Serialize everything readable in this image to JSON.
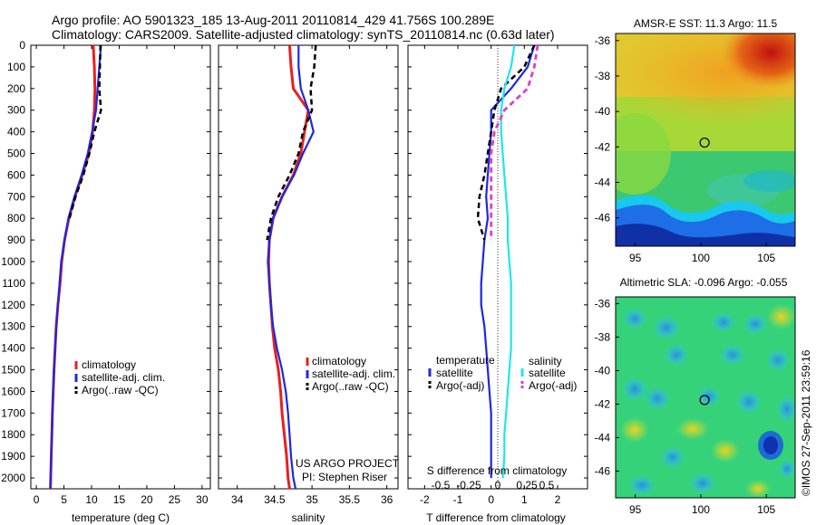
{
  "header": {
    "line1": "Argo profile: AO 5901323_185 13-Aug-2011 20110814_429 41.756S 100.289E",
    "line2": "Climatology: CARS2009. Satellite-adjusted climatology: synTS_20110814.nc (0.63d later)"
  },
  "colors": {
    "climatology": "#e8201e",
    "satellite": "#1c28e0",
    "argo": "#000000",
    "sal_sat": "#1ee6ee",
    "sal_argo": "#e53ad3"
  },
  "chart_data": [
    {
      "type": "line",
      "name": "temperature",
      "xlabel": "temperature (deg C)",
      "ylabel": "",
      "xlim": [
        -1,
        31.5
      ],
      "ylim": [
        2050,
        0
      ],
      "xticks": [
        0,
        5,
        10,
        15,
        20,
        25,
        30
      ],
      "yticks": [
        0,
        100,
        200,
        300,
        400,
        500,
        600,
        700,
        800,
        900,
        1000,
        1100,
        1200,
        1300,
        1400,
        1500,
        1600,
        1700,
        1800,
        1900,
        2000
      ],
      "legend": [
        "climatology",
        "satellite-adj. clim.",
        "Argo(..raw -QC)"
      ],
      "series": [
        {
          "name": "climatology",
          "x": [
            10.3,
            10.5,
            10.6,
            10.5,
            10.2,
            9.5,
            8.3,
            7.0,
            5.9,
            5.1,
            4.6,
            4.3,
            3.9,
            3.6,
            3.4,
            3.2,
            3.05,
            2.9,
            2.8,
            2.7,
            2.6,
            2.55
          ],
          "y": [
            0,
            100,
            200,
            300,
            400,
            500,
            600,
            700,
            800,
            900,
            1000,
            1100,
            1200,
            1300,
            1400,
            1500,
            1600,
            1700,
            1800,
            1900,
            2000,
            2050
          ]
        },
        {
          "name": "satellite-adj. clim.",
          "x": [
            11.7,
            11.4,
            11.1,
            10.8,
            10.1,
            9.3,
            8.2,
            6.9,
            5.8,
            5.1,
            4.5,
            4.2,
            3.9,
            3.6,
            3.4,
            3.2,
            3.05,
            2.9,
            2.8,
            2.7,
            2.6,
            2.55
          ],
          "y": [
            0,
            100,
            200,
            300,
            400,
            500,
            600,
            700,
            800,
            900,
            1000,
            1100,
            1200,
            1300,
            1400,
            1500,
            1600,
            1700,
            1800,
            1900,
            2000,
            2050
          ]
        },
        {
          "name": "Argo(..raw -QC)",
          "x": [
            11.6,
            11.5,
            11.4,
            11.7,
            10.5,
            9.6,
            8.5,
            7.1,
            6.0
          ],
          "y": [
            0,
            100,
            200,
            300,
            400,
            500,
            600,
            700,
            800
          ]
        }
      ]
    },
    {
      "type": "line",
      "name": "salinity",
      "xlabel": "salinity",
      "ylabel": "",
      "xlim": [
        33.75,
        36.15
      ],
      "ylim": [
        2050,
        0
      ],
      "xticks": [
        34,
        34.5,
        35,
        35.5,
        36
      ],
      "legend": [
        "climatology",
        "satellite-adj. clim.",
        "Argo(..raw -QC)"
      ],
      "series": [
        {
          "name": "climatology",
          "x": [
            34.7,
            34.72,
            34.75,
            34.95,
            34.9,
            34.85,
            34.75,
            34.6,
            34.48,
            34.43,
            34.42,
            34.43,
            34.45,
            34.47,
            34.5,
            34.55,
            34.58,
            34.6,
            34.63,
            34.66,
            34.68,
            34.7
          ],
          "y": [
            0,
            100,
            200,
            300,
            400,
            500,
            600,
            700,
            800,
            900,
            1000,
            1100,
            1200,
            1300,
            1400,
            1500,
            1600,
            1700,
            1800,
            1900,
            2000,
            2050
          ]
        },
        {
          "name": "satellite-adj. clim.",
          "x": [
            34.82,
            34.82,
            34.85,
            34.95,
            35.02,
            34.88,
            34.76,
            34.6,
            34.48,
            34.43,
            34.41,
            34.43,
            34.45,
            34.48,
            34.53,
            34.6,
            34.65,
            34.68,
            34.7,
            34.72,
            34.75,
            34.78
          ],
          "y": [
            0,
            100,
            200,
            300,
            400,
            500,
            600,
            700,
            800,
            900,
            1000,
            1100,
            1200,
            1300,
            1400,
            1500,
            1600,
            1700,
            1800,
            1900,
            2000,
            2050
          ]
        },
        {
          "name": "Argo(..raw -QC)",
          "x": [
            35.05,
            35.03,
            34.98,
            35.0,
            34.88,
            34.82,
            34.7,
            34.55,
            34.45,
            34.4
          ],
          "y": [
            0,
            100,
            200,
            300,
            400,
            500,
            600,
            700,
            800,
            900
          ]
        }
      ]
    },
    {
      "type": "line",
      "name": "difference",
      "xlabel": "T difference from climatology",
      "x2label": "S difference from climatology",
      "xlim": [
        -2.5,
        2.9
      ],
      "ylim": [
        2050,
        0
      ],
      "xticks": [
        -2,
        -1,
        0,
        1,
        2
      ],
      "x2ticks": [
        {
          "value": -0.5,
          "label": "-0.5"
        },
        {
          "value": -0.25,
          "label": "-0.25"
        },
        {
          "value": 0,
          "label": "0"
        },
        {
          "value": 0.25,
          "label": "0.25"
        },
        {
          "value": 0.5,
          "label": "0.5"
        }
      ],
      "legend_headers": [
        "temperature",
        "salinity"
      ],
      "legend": [
        "satellite",
        "Argo(-adj)",
        "satellite",
        "Argo(-adj)"
      ],
      "series": [
        {
          "name": "satellite",
          "kind": "temperature",
          "x": [
            1.3,
            1.1,
            0.6,
            0.0,
            0.0,
            -0.05,
            -0.1,
            -0.15,
            -0.1,
            -0.2,
            -0.25,
            -0.3,
            -0.3,
            -0.2,
            -0.15,
            -0.1,
            -0.05,
            0.0,
            0.0,
            0.0,
            0.0
          ],
          "y": [
            0,
            100,
            200,
            300,
            400,
            500,
            600,
            700,
            800,
            900,
            1000,
            1100,
            1200,
            1300,
            1400,
            1500,
            1600,
            1700,
            1800,
            1900,
            2000
          ]
        },
        {
          "name": "Argo(-adj)",
          "kind": "temperature",
          "x": [
            1.3,
            1.0,
            0.3,
            0.1,
            0.0,
            -0.1,
            -0.2,
            -0.35,
            -0.4,
            -0.2
          ],
          "y": [
            0,
            100,
            200,
            300,
            400,
            500,
            600,
            700,
            800,
            900
          ]
        },
        {
          "name": "satellite",
          "kind": "salinity",
          "x": [
            0.7,
            0.6,
            0.4,
            0.3,
            0.3,
            0.35,
            0.4,
            0.45,
            0.5,
            0.5,
            0.55,
            0.6,
            0.6,
            0.6,
            0.6,
            0.55,
            0.5,
            0.45,
            0.4,
            0.4,
            0.35
          ],
          "y": [
            0,
            100,
            200,
            300,
            400,
            500,
            600,
            700,
            800,
            900,
            1000,
            1100,
            1200,
            1300,
            1400,
            1500,
            1600,
            1700,
            1800,
            1900,
            2000
          ]
        },
        {
          "name": "Argo(-adj)",
          "kind": "salinity",
          "x": [
            1.4,
            1.3,
            1.1,
            0.4,
            0.1,
            0.0,
            0.0,
            0.0,
            0.0,
            0.0
          ],
          "y": [
            0,
            100,
            200,
            300,
            400,
            500,
            600,
            700,
            800,
            900
          ]
        }
      ]
    },
    {
      "type": "heatmap",
      "name": "sst",
      "title": "AMSR-E SST: 11.3 Argo: 11.5",
      "xticks": [
        95,
        100,
        105
      ],
      "yticks": [
        -36,
        -38,
        -40,
        -42,
        -44,
        -46
      ],
      "xlim": [
        93.5,
        107.2
      ],
      "ylim": [
        -47.6,
        -35.6
      ],
      "marker": {
        "lon": 100.289,
        "lat": -41.756
      }
    },
    {
      "type": "heatmap",
      "name": "sla",
      "title": "Altimetric SLA: -0.096 Argo: -0.055",
      "xticks": [
        95,
        100,
        105
      ],
      "yticks": [
        -36,
        -38,
        -40,
        -42,
        -44,
        -46
      ],
      "xlim": [
        93.5,
        107.2
      ],
      "ylim": [
        -47.6,
        -35.6
      ],
      "marker": {
        "lon": 100.289,
        "lat": -41.756
      }
    }
  ],
  "footer": {
    "project": "US ARGO PROJECT",
    "pi": "PI: Stephen Riser",
    "credit": "©IMOS 27-Sep-2011 23:59:16"
  }
}
